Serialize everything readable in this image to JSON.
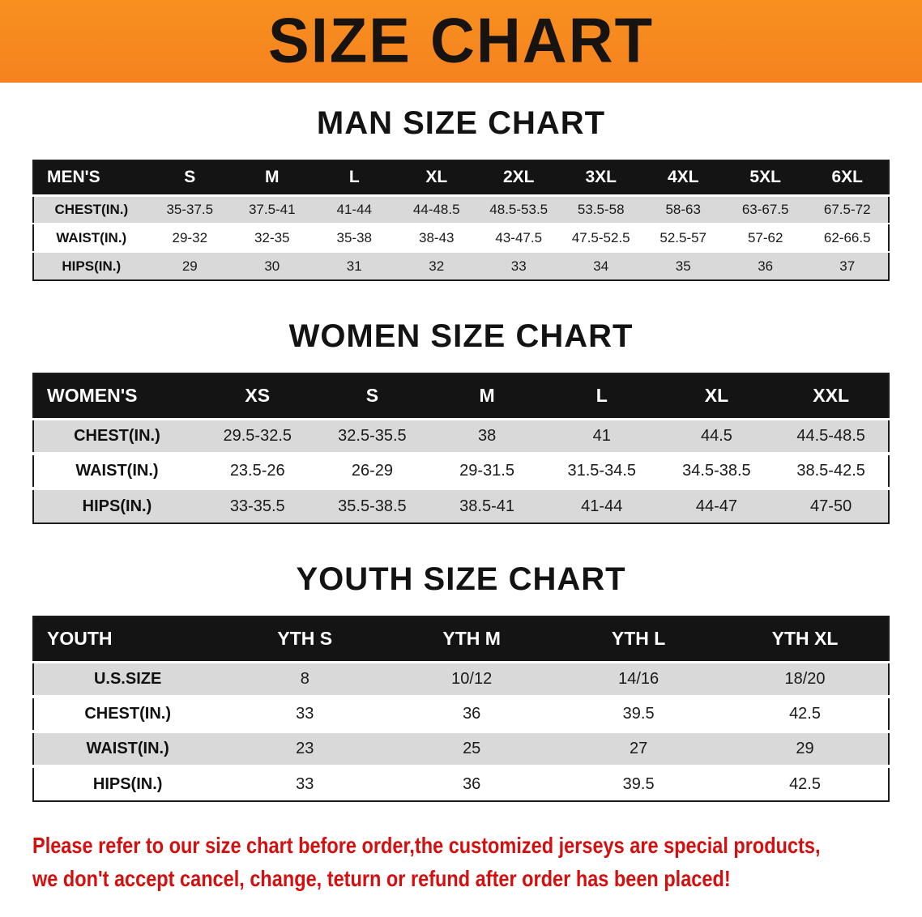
{
  "banner": {
    "title": "SIZE CHART",
    "bg_color": "#f5821f",
    "text_color": "#161310"
  },
  "chart_data": [
    {
      "type": "table",
      "title": "MAN SIZE CHART",
      "header": [
        "MEN'S",
        "S",
        "M",
        "L",
        "XL",
        "2XL",
        "3XL",
        "4XL",
        "5XL",
        "6XL"
      ],
      "rows": [
        [
          "CHEST(IN.)",
          "35-37.5",
          "37.5-41",
          "41-44",
          "44-48.5",
          "48.5-53.5",
          "53.5-58",
          "58-63",
          "63-67.5",
          "67.5-72"
        ],
        [
          "WAIST(IN.)",
          "29-32",
          "32-35",
          "35-38",
          "38-43",
          "43-47.5",
          "47.5-52.5",
          "52.5-57",
          "57-62",
          "62-66.5"
        ],
        [
          "HIPS(IN.)",
          "29",
          "30",
          "31",
          "32",
          "33",
          "34",
          "35",
          "36",
          "37"
        ]
      ]
    },
    {
      "type": "table",
      "title": "WOMEN SIZE CHART",
      "header": [
        "WOMEN'S",
        "XS",
        "S",
        "M",
        "L",
        "XL",
        "XXL"
      ],
      "rows": [
        [
          "CHEST(IN.)",
          "29.5-32.5",
          "32.5-35.5",
          "38",
          "41",
          "44.5",
          "44.5-48.5"
        ],
        [
          "WAIST(IN.)",
          "23.5-26",
          "26-29",
          "29-31.5",
          "31.5-34.5",
          "34.5-38.5",
          "38.5-42.5"
        ],
        [
          "HIPS(IN.)",
          "33-35.5",
          "35.5-38.5",
          "38.5-41",
          "41-44",
          "44-47",
          "47-50"
        ]
      ]
    },
    {
      "type": "table",
      "title": "YOUTH SIZE CHART",
      "header": [
        "YOUTH",
        "YTH S",
        "YTH M",
        "YTH L",
        "YTH XL"
      ],
      "rows": [
        [
          "U.S.SIZE",
          "8",
          "10/12",
          "14/16",
          "18/20"
        ],
        [
          "CHEST(IN.)",
          "33",
          "36",
          "39.5",
          "42.5"
        ],
        [
          "WAIST(IN.)",
          "23",
          "25",
          "27",
          "29"
        ],
        [
          "HIPS(IN.)",
          "33",
          "36",
          "39.5",
          "42.5"
        ]
      ]
    }
  ],
  "disclaimer": {
    "line1": "Please refer to our size chart before order,the customized jerseys are special products,",
    "line2": "we don't accept cancel, change, teturn or refund after order has been placed!",
    "color": "#d40f0f"
  }
}
